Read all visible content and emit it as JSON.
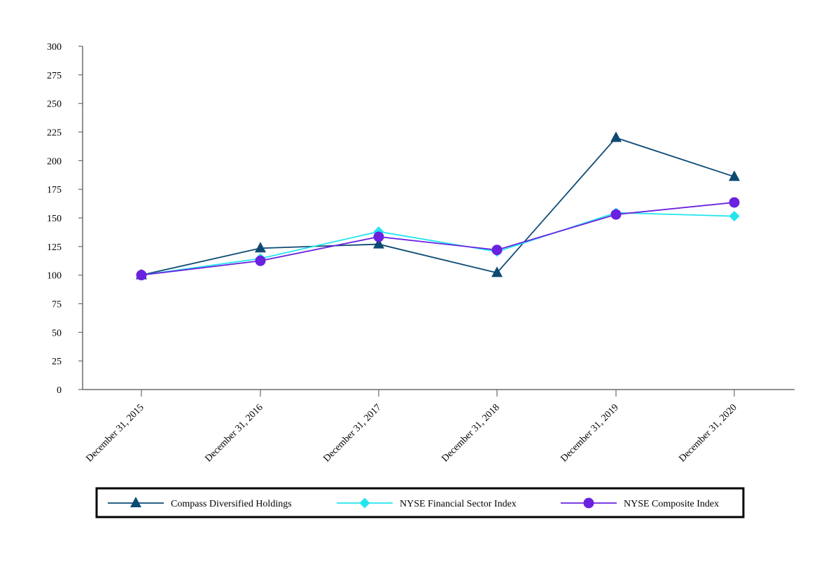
{
  "chart_data": {
    "type": "line",
    "categories": [
      "December 31, 2015",
      "December 31, 2016",
      "December 31, 2017",
      "December 31, 2018",
      "December 31, 2019",
      "December 31, 2020"
    ],
    "yticks": [
      0,
      25,
      50,
      75,
      100,
      125,
      150,
      175,
      200,
      225,
      250,
      275,
      300
    ],
    "ylim": [
      0,
      300
    ],
    "legend_position": "bottom",
    "grid": false,
    "series": [
      {
        "name": "Compass Diversified Holdings",
        "marker": "triangle",
        "color": "#0d4a73",
        "values": [
          100,
          123.5,
          127,
          102,
          220,
          186
        ]
      },
      {
        "name": "NYSE Financial Sector Index",
        "marker": "diamond",
        "color": "#22e5ef",
        "values": [
          100,
          114.5,
          138,
          120.5,
          154.5,
          151.5
        ]
      },
      {
        "name": "NYSE Composite Index",
        "marker": "circle",
        "color": "#6a22e0",
        "values": [
          100,
          112.5,
          133.5,
          122,
          153,
          163.5
        ]
      }
    ]
  }
}
